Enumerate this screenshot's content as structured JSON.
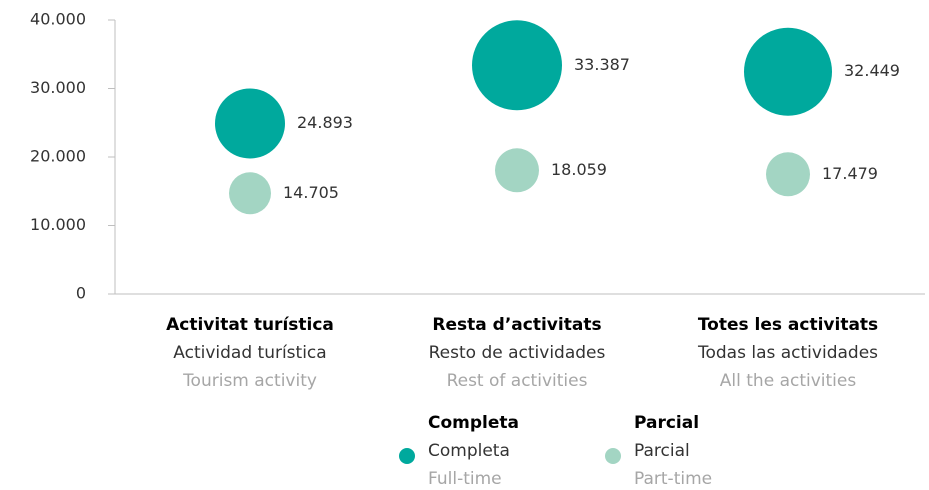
{
  "chart_data": {
    "type": "bubble",
    "categories": [
      "Activitat turística",
      "Resta d’activitats",
      "Totes les activitats"
    ],
    "categories_es": [
      "Actividad turística",
      "Resto de actividades",
      "Todas las actividades"
    ],
    "categories_en": [
      "Tourism activity",
      "Rest of activities",
      "All the activities"
    ],
    "series": [
      {
        "name": "Completa",
        "name_es": "Completa",
        "name_en": "Full-time",
        "color": "#00a99d",
        "values": [
          24893,
          33387,
          32449
        ],
        "value_labels": [
          "24.893",
          "33.387",
          "32.449"
        ],
        "sizes": [
          1225,
          2025,
          1936
        ]
      },
      {
        "name": "Parcial",
        "name_es": "Parcial",
        "name_en": "Part-time",
        "color": "#a3d5c3",
        "values": [
          14705,
          18059,
          17479
        ],
        "value_labels": [
          "14.705",
          "18.059",
          "17.479"
        ],
        "sizes": [
          441,
          484,
          484
        ]
      }
    ],
    "ylim": [
      0,
      40000
    ],
    "yticks": [
      0,
      {
        "value": 10000,
        "label": "10.000"
      },
      {
        "value": 20000,
        "label": "20.000"
      },
      {
        "value": 30000,
        "label": "30.000"
      },
      {
        "value": 40000,
        "label": "40.000"
      }
    ],
    "grid": false
  }
}
